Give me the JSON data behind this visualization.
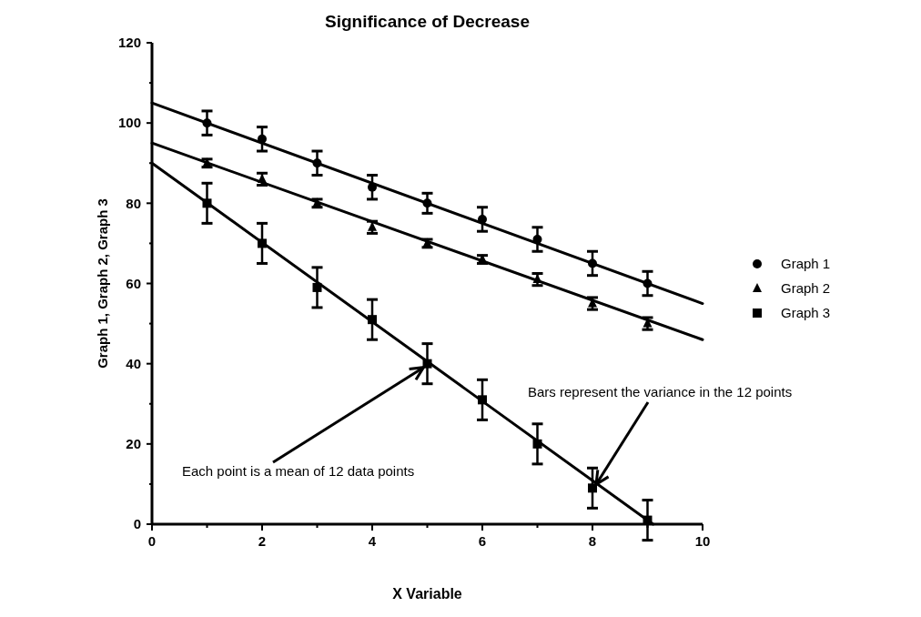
{
  "chart_data": {
    "type": "scatter",
    "title": "Significance  of  Decrease",
    "xlabel": "X  Variable",
    "ylabel": "Graph  1,  Graph  2,  Graph  3",
    "x": [
      1,
      2,
      3,
      4,
      5,
      6,
      7,
      8,
      9
    ],
    "xlim": [
      0,
      10
    ],
    "xticks": [
      0,
      {
        "value": 1,
        "label": null
      },
      2,
      {
        "value": 3,
        "label": null
      },
      4,
      {
        "value": 5,
        "label": null
      },
      6,
      {
        "value": 7,
        "label": null
      },
      8,
      {
        "value": 9,
        "label": null
      },
      10
    ],
    "ylim": [
      0,
      120
    ],
    "yticks": [
      0,
      {
        "value": 10,
        "label": null
      },
      20,
      {
        "value": 30,
        "label": null
      },
      40,
      {
        "value": 50,
        "label": null
      },
      60,
      {
        "value": 70,
        "label": null
      },
      80,
      {
        "value": 90,
        "label": null
      },
      100,
      {
        "value": 110,
        "label": null
      },
      120
    ],
    "grid": false,
    "legend": "right",
    "line_style": "solid",
    "series": [
      {
        "name": "Graph 1",
        "color": "#000000",
        "marker": "circle",
        "values": [
          100,
          96,
          90,
          84,
          80,
          76,
          71,
          65,
          60
        ],
        "errors": [
          3,
          3,
          3,
          3,
          2.5,
          3,
          3,
          3,
          3
        ]
      },
      {
        "name": "Graph 2",
        "color": "#000000",
        "marker": "triangle",
        "values": [
          90,
          86,
          80,
          74,
          70,
          66,
          61,
          55,
          50
        ],
        "errors": [
          1,
          1.5,
          1,
          1.5,
          1,
          1,
          1.5,
          1.5,
          1.5
        ]
      },
      {
        "name": "Graph 3",
        "color": "#000000",
        "marker": "square",
        "values": [
          80,
          70,
          59,
          51,
          40,
          31,
          20,
          9,
          1
        ],
        "errors": [
          5,
          5,
          5,
          5,
          5,
          5,
          5,
          5,
          5
        ]
      },
      {
        "type": "line",
        "color": "#000000",
        "x": [
          0,
          10
        ],
        "values": [
          105,
          55
        ]
      },
      {
        "type": "line",
        "color": "#000000",
        "x": [
          0,
          10
        ],
        "values": [
          95,
          46
        ]
      },
      {
        "type": "line",
        "color": "#000000",
        "x": [
          0,
          9.1
        ],
        "values": [
          90,
          0
        ]
      }
    ],
    "annotations": [
      {
        "text": "Each point is a mean of 12 data points",
        "x": 5,
        "y": 40
      },
      {
        "text": "Bars represent the variance in the 12 points",
        "x": 8,
        "y": 9
      }
    ]
  }
}
